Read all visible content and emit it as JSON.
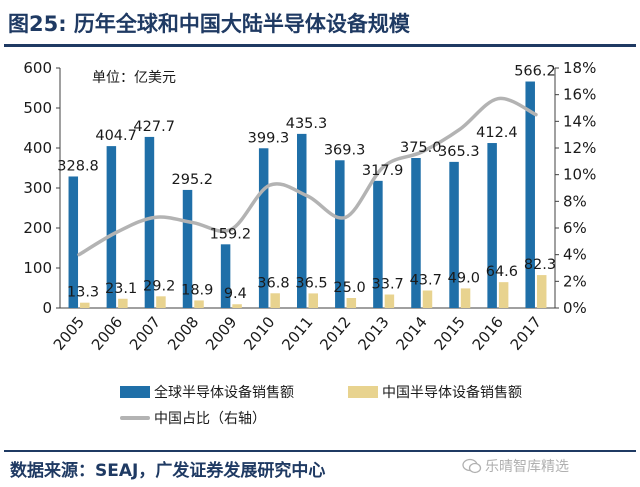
{
  "title": "图25:  历年全球和中国大陆半导体设备规模",
  "source": "数据来源：SEAJ，广发证券发展研究中心",
  "watermark": "乐晴智库精选",
  "colors": {
    "global": "#1f6fa8",
    "china": "#e8d38f",
    "ratio": "#b3b3b3",
    "title": "#1f3a63"
  },
  "chart_data": {
    "type": "bar",
    "unit_label": "单位：亿美元",
    "categories": [
      "2005",
      "2006",
      "2007",
      "2008",
      "2009",
      "2010",
      "2011",
      "2012",
      "2013",
      "2014",
      "2015",
      "2016",
      "2017"
    ],
    "series": [
      {
        "name": "全球半导体设备销售额",
        "values": [
          328.8,
          404.7,
          427.7,
          295.2,
          159.2,
          399.3,
          435.3,
          369.3,
          317.9,
          375.0,
          365.3,
          412.4,
          566.2
        ]
      },
      {
        "name": "中国半导体设备销售额",
        "values": [
          13.3,
          23.1,
          29.2,
          18.9,
          9.4,
          36.8,
          36.5,
          25.0,
          33.7,
          43.7,
          49.0,
          64.6,
          82.3
        ]
      }
    ],
    "line_series": {
      "name": "中国占比（右轴）",
      "axis": "right",
      "values": [
        4.0,
        5.7,
        6.8,
        6.4,
        5.9,
        9.2,
        8.4,
        6.8,
        10.6,
        11.7,
        13.4,
        15.7,
        14.5
      ]
    },
    "ylim": [
      0,
      600
    ],
    "yticks": [
      0,
      100,
      200,
      300,
      400,
      500,
      600
    ],
    "y2lim": [
      0,
      18
    ],
    "y2ticks": [
      "0%",
      "2%",
      "4%",
      "6%",
      "8%",
      "10%",
      "12%",
      "14%",
      "16%",
      "18%"
    ],
    "legend_position": "bottom",
    "grid": false
  }
}
